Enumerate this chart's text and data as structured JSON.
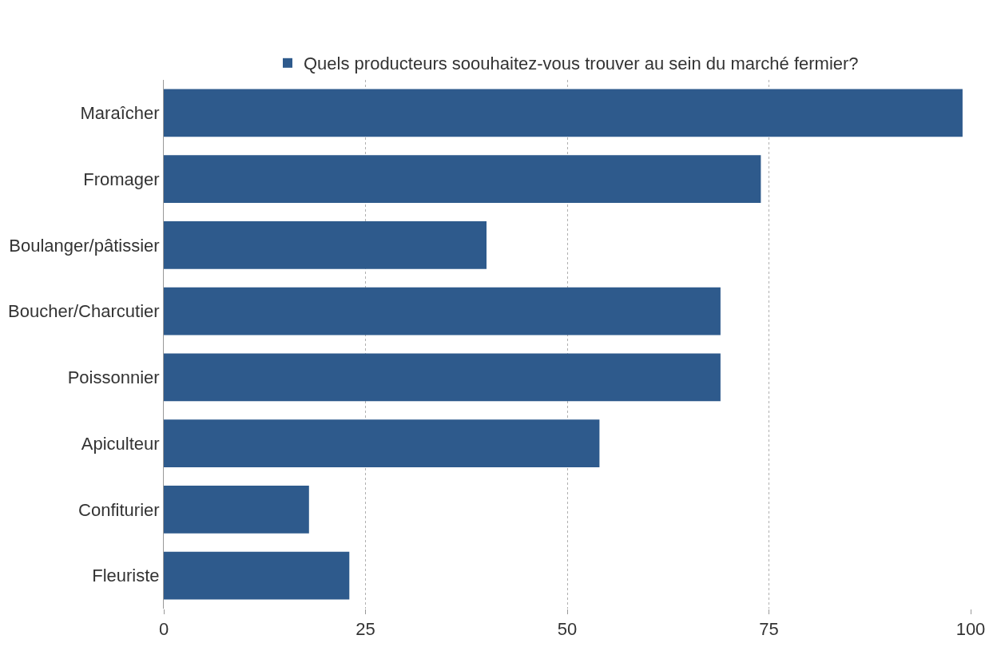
{
  "chart_data": {
    "type": "bar",
    "orientation": "horizontal",
    "categories": [
      "Maraîcher",
      "Fromager",
      "Boulanger/pâtissier",
      "Boucher/Charcutier",
      "Poissonnier",
      "Apiculteur",
      "Confiturier",
      "Fleuriste"
    ],
    "series": [
      {
        "name": "Quels producteurs soouhaitez-vous trouver au sein du marché fermier?",
        "color": "#2e5a8c",
        "values": [
          99,
          74,
          40,
          69,
          69,
          54,
          18,
          23
        ]
      }
    ],
    "xlim": [
      0,
      100
    ],
    "xticks": [
      0,
      25,
      50,
      75,
      100
    ],
    "grid": "x",
    "legend": "top"
  }
}
